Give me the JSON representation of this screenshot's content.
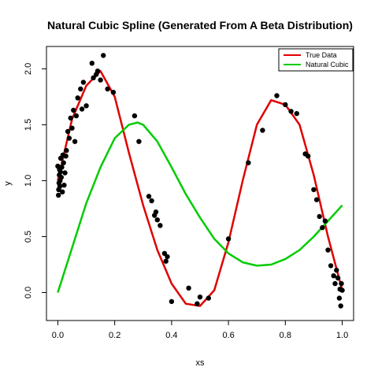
{
  "chart_data": {
    "type": "scatter",
    "title": "Natural Cubic Spline (Generated From A Beta Distribution)",
    "xlabel": "xs",
    "ylabel": "y",
    "xlim": [
      -0.04,
      1.04
    ],
    "ylim": [
      -0.25,
      2.2
    ],
    "xticks": [
      "0.0",
      "0.2",
      "0.4",
      "0.6",
      "0.8",
      "1.0"
    ],
    "xtick_values": [
      0,
      0.2,
      0.4,
      0.6,
      0.8,
      1.0
    ],
    "yticks": [
      "0.0",
      "0.5",
      "1.0",
      "1.5",
      "2.0"
    ],
    "ytick_values": [
      0,
      0.5,
      1.0,
      1.5,
      2.0
    ],
    "grid": false,
    "legend_position": "top-right",
    "points": {
      "color": "#000000",
      "x": [
        0.0,
        0.002,
        0.003,
        0.004,
        0.005,
        0.006,
        0.007,
        0.008,
        0.009,
        0.01,
        0.012,
        0.014,
        0.016,
        0.018,
        0.02,
        0.022,
        0.025,
        0.028,
        0.03,
        0.035,
        0.04,
        0.045,
        0.05,
        0.055,
        0.06,
        0.065,
        0.07,
        0.08,
        0.085,
        0.09,
        0.1,
        0.12,
        0.125,
        0.135,
        0.14,
        0.15,
        0.16,
        0.175,
        0.195,
        0.27,
        0.285,
        0.32,
        0.33,
        0.34,
        0.345,
        0.35,
        0.36,
        0.375,
        0.38,
        0.385,
        0.4,
        0.46,
        0.49,
        0.5,
        0.53,
        0.6,
        0.67,
        0.72,
        0.77,
        0.8,
        0.82,
        0.84,
        0.87,
        0.88,
        0.9,
        0.91,
        0.92,
        0.93,
        0.94,
        0.95,
        0.96,
        0.97,
        0.975,
        0.98,
        0.985,
        0.99,
        0.992,
        0.995,
        0.997,
        1.0
      ],
      "y": [
        1.13,
        0.87,
        0.92,
        0.98,
        1.05,
        1.1,
        0.95,
        1.0,
        1.08,
        1.2,
        1.03,
        1.12,
        0.9,
        1.23,
        1.16,
        0.96,
        1.07,
        1.22,
        1.27,
        1.44,
        1.38,
        1.56,
        1.47,
        1.63,
        1.35,
        1.58,
        1.74,
        1.82,
        1.64,
        1.88,
        1.67,
        2.05,
        1.92,
        1.95,
        1.98,
        1.9,
        2.12,
        1.82,
        1.79,
        1.58,
        1.35,
        0.86,
        0.82,
        0.69,
        0.72,
        0.65,
        0.6,
        0.35,
        0.28,
        0.32,
        -0.08,
        0.04,
        -0.1,
        -0.04,
        -0.05,
        0.48,
        1.16,
        1.45,
        1.76,
        1.68,
        1.62,
        1.6,
        1.24,
        1.22,
        0.92,
        0.83,
        0.68,
        0.58,
        0.64,
        0.38,
        0.24,
        0.15,
        0.08,
        0.2,
        0.13,
        -0.05,
        0.03,
        -0.12,
        0.08,
        0.02
      ]
    },
    "series": [
      {
        "name": "True Data",
        "color": "#e00000",
        "x": [
          0.0,
          0.05,
          0.1,
          0.15,
          0.2,
          0.25,
          0.3,
          0.35,
          0.4,
          0.45,
          0.5,
          0.55,
          0.6,
          0.65,
          0.7,
          0.75,
          0.8,
          0.85,
          0.9,
          0.95,
          1.0
        ],
        "y": [
          1.0,
          1.55,
          1.85,
          1.98,
          1.75,
          1.25,
          0.78,
          0.38,
          0.08,
          -0.1,
          -0.12,
          0.02,
          0.45,
          1.0,
          1.5,
          1.72,
          1.68,
          1.5,
          1.05,
          0.5,
          0.02
        ]
      },
      {
        "name": "Natural Cubic",
        "color": "#00cc00",
        "x": [
          0.0,
          0.05,
          0.1,
          0.15,
          0.2,
          0.25,
          0.28,
          0.3,
          0.35,
          0.4,
          0.45,
          0.5,
          0.55,
          0.6,
          0.65,
          0.7,
          0.75,
          0.8,
          0.85,
          0.9,
          0.95,
          1.0
        ],
        "y": [
          0.0,
          0.4,
          0.8,
          1.12,
          1.38,
          1.5,
          1.52,
          1.5,
          1.35,
          1.12,
          0.88,
          0.67,
          0.48,
          0.35,
          0.27,
          0.24,
          0.25,
          0.3,
          0.38,
          0.5,
          0.64,
          0.78
        ]
      }
    ]
  }
}
